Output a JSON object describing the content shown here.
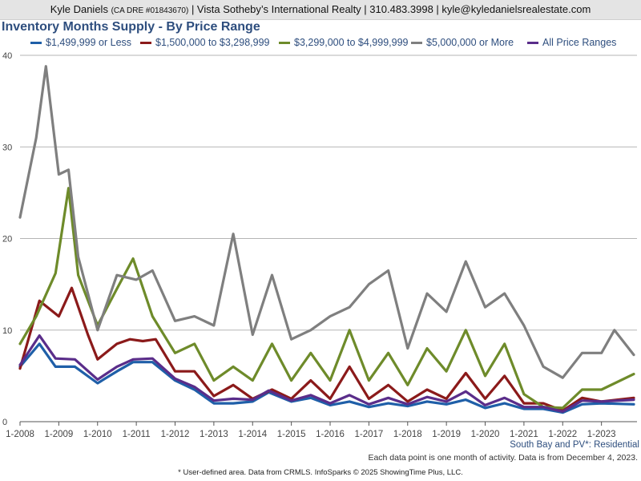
{
  "header": {
    "agent_name": "Kyle Daniels",
    "dre": "(CA DRE #01843670)",
    "rest": "| Vista Sotheby’s International Realty | 310.483.3998 | kyle@kyledanielsrealestate.com"
  },
  "title": "Inventory Months Supply - By Price Range",
  "region_label": "South Bay and PV*: Residential",
  "note_data_point": "Each data point is one month of activity. Data is from December 4, 2023.",
  "note_footer": "* User-defined area. Data from CRMLS. InfoSparks © 2025 ShowingTime Plus, LLC.",
  "chart_data": {
    "type": "line",
    "x_tick_labels": [
      "1-2008",
      "1-2009",
      "1-2010",
      "1-2011",
      "1-2012",
      "1-2013",
      "1-2014",
      "1-2015",
      "1-2016",
      "1-2017",
      "1-2018",
      "1-2019",
      "1-2020",
      "1-2021",
      "1-2022",
      "1-2023"
    ],
    "y_ticks": [
      0,
      10,
      20,
      30,
      40
    ],
    "ylim": [
      0,
      40
    ],
    "xlim": [
      "1-2008",
      "12-2023"
    ],
    "grid": "horizontal",
    "legend_position": "top",
    "series": [
      {
        "name": "$1,499,999 or Less",
        "color": "#1f5fa8",
        "points": [
          [
            "1-2008",
            6.0
          ],
          [
            "7-2008",
            8.5
          ],
          [
            "12-2008",
            6.0
          ],
          [
            "6-2009",
            6.0
          ],
          [
            "1-2010",
            4.2
          ],
          [
            "7-2010",
            5.5
          ],
          [
            "12-2010",
            6.5
          ],
          [
            "6-2011",
            6.5
          ],
          [
            "1-2012",
            4.5
          ],
          [
            "7-2012",
            3.5
          ],
          [
            "1-2013",
            2.0
          ],
          [
            "7-2013",
            2.0
          ],
          [
            "1-2014",
            2.2
          ],
          [
            "6-2014",
            3.2
          ],
          [
            "1-2015",
            2.2
          ],
          [
            "7-2015",
            2.6
          ],
          [
            "1-2016",
            1.8
          ],
          [
            "7-2016",
            2.2
          ],
          [
            "1-2017",
            1.6
          ],
          [
            "7-2017",
            2.0
          ],
          [
            "1-2018",
            1.7
          ],
          [
            "7-2018",
            2.2
          ],
          [
            "1-2019",
            1.9
          ],
          [
            "7-2019",
            2.4
          ],
          [
            "1-2020",
            1.5
          ],
          [
            "7-2020",
            2.0
          ],
          [
            "1-2021",
            1.4
          ],
          [
            "7-2021",
            1.4
          ],
          [
            "1-2022",
            1.0
          ],
          [
            "7-2022",
            1.9
          ],
          [
            "1-2023",
            2.0
          ],
          [
            "11-2023",
            1.9
          ]
        ]
      },
      {
        "name": "$1,500,000 to $3,298,999",
        "color": "#8b1a1a",
        "points": [
          [
            "1-2008",
            5.8
          ],
          [
            "7-2008",
            13.2
          ],
          [
            "1-2009",
            11.5
          ],
          [
            "5-2009",
            14.6
          ],
          [
            "10-2009",
            9.5
          ],
          [
            "1-2010",
            6.8
          ],
          [
            "7-2010",
            8.5
          ],
          [
            "11-2010",
            9.0
          ],
          [
            "3-2011",
            8.8
          ],
          [
            "7-2011",
            9.0
          ],
          [
            "1-2012",
            5.5
          ],
          [
            "7-2012",
            5.5
          ],
          [
            "1-2013",
            2.8
          ],
          [
            "7-2013",
            4.0
          ],
          [
            "1-2014",
            2.5
          ],
          [
            "7-2014",
            3.5
          ],
          [
            "1-2015",
            2.5
          ],
          [
            "7-2015",
            4.5
          ],
          [
            "1-2016",
            2.5
          ],
          [
            "7-2016",
            6.0
          ],
          [
            "1-2017",
            2.5
          ],
          [
            "7-2017",
            4.0
          ],
          [
            "1-2018",
            2.2
          ],
          [
            "7-2018",
            3.5
          ],
          [
            "1-2019",
            2.5
          ],
          [
            "7-2019",
            5.3
          ],
          [
            "1-2020",
            2.5
          ],
          [
            "7-2020",
            5.0
          ],
          [
            "1-2021",
            2.0
          ],
          [
            "7-2021",
            2.0
          ],
          [
            "1-2022",
            1.2
          ],
          [
            "7-2022",
            2.6
          ],
          [
            "1-2023",
            2.2
          ],
          [
            "11-2023",
            2.6
          ]
        ]
      },
      {
        "name": "$3,299,000 to $4,999,999",
        "color": "#6e8b2a",
        "points": [
          [
            "1-2008",
            8.5
          ],
          [
            "6-2008",
            11.5
          ],
          [
            "12-2008",
            16.2
          ],
          [
            "4-2009",
            25.5
          ],
          [
            "7-2009",
            16.0
          ],
          [
            "1-2010",
            10.5
          ],
          [
            "7-2010",
            14.5
          ],
          [
            "12-2010",
            17.8
          ],
          [
            "6-2011",
            11.5
          ],
          [
            "1-2012",
            7.5
          ],
          [
            "7-2012",
            8.5
          ],
          [
            "1-2013",
            4.5
          ],
          [
            "7-2013",
            6.0
          ],
          [
            "1-2014",
            4.5
          ],
          [
            "7-2014",
            8.5
          ],
          [
            "1-2015",
            4.5
          ],
          [
            "7-2015",
            7.5
          ],
          [
            "1-2016",
            4.5
          ],
          [
            "7-2016",
            10.0
          ],
          [
            "1-2017",
            4.5
          ],
          [
            "7-2017",
            7.5
          ],
          [
            "1-2018",
            4.0
          ],
          [
            "7-2018",
            8.0
          ],
          [
            "1-2019",
            5.5
          ],
          [
            "7-2019",
            10.0
          ],
          [
            "1-2020",
            5.0
          ],
          [
            "7-2020",
            8.5
          ],
          [
            "1-2021",
            3.0
          ],
          [
            "7-2021",
            1.6
          ],
          [
            "1-2022",
            1.5
          ],
          [
            "7-2022",
            3.5
          ],
          [
            "1-2023",
            3.5
          ],
          [
            "11-2023",
            5.2
          ]
        ]
      },
      {
        "name": "$5,000,000 or More",
        "color": "#7f7f7f",
        "points": [
          [
            "1-2008",
            22.3
          ],
          [
            "6-2008",
            31.0
          ],
          [
            "9-2008",
            38.8
          ],
          [
            "1-2009",
            27.0
          ],
          [
            "4-2009",
            27.5
          ],
          [
            "7-2009",
            18.0
          ],
          [
            "1-2010",
            10.0
          ],
          [
            "7-2010",
            16.0
          ],
          [
            "1-2011",
            15.5
          ],
          [
            "6-2011",
            16.5
          ],
          [
            "1-2012",
            11.0
          ],
          [
            "7-2012",
            11.5
          ],
          [
            "1-2013",
            10.5
          ],
          [
            "7-2013",
            20.5
          ],
          [
            "1-2014",
            9.5
          ],
          [
            "7-2014",
            16.0
          ],
          [
            "1-2015",
            9.0
          ],
          [
            "7-2015",
            10.0
          ],
          [
            "1-2016",
            11.5
          ],
          [
            "7-2016",
            12.5
          ],
          [
            "1-2017",
            15.0
          ],
          [
            "7-2017",
            16.5
          ],
          [
            "1-2018",
            8.0
          ],
          [
            "7-2018",
            14.0
          ],
          [
            "1-2019",
            12.0
          ],
          [
            "7-2019",
            17.5
          ],
          [
            "1-2020",
            12.5
          ],
          [
            "7-2020",
            14.0
          ],
          [
            "1-2021",
            10.5
          ],
          [
            "7-2021",
            6.0
          ],
          [
            "1-2022",
            4.8
          ],
          [
            "7-2022",
            7.5
          ],
          [
            "1-2023",
            7.5
          ],
          [
            "5-2023",
            10.0
          ],
          [
            "11-2023",
            7.3
          ]
        ]
      },
      {
        "name": "All Price Ranges",
        "color": "#5a2d8a",
        "points": [
          [
            "1-2008",
            6.2
          ],
          [
            "7-2008",
            9.4
          ],
          [
            "12-2008",
            6.9
          ],
          [
            "6-2009",
            6.8
          ],
          [
            "1-2010",
            4.6
          ],
          [
            "7-2010",
            6.0
          ],
          [
            "12-2010",
            6.8
          ],
          [
            "6-2011",
            6.9
          ],
          [
            "1-2012",
            4.7
          ],
          [
            "7-2012",
            3.8
          ],
          [
            "1-2013",
            2.3
          ],
          [
            "7-2013",
            2.5
          ],
          [
            "1-2014",
            2.4
          ],
          [
            "6-2014",
            3.4
          ],
          [
            "1-2015",
            2.3
          ],
          [
            "7-2015",
            2.9
          ],
          [
            "1-2016",
            2.0
          ],
          [
            "7-2016",
            2.9
          ],
          [
            "1-2017",
            1.9
          ],
          [
            "7-2017",
            2.6
          ],
          [
            "1-2018",
            1.9
          ],
          [
            "7-2018",
            2.7
          ],
          [
            "1-2019",
            2.2
          ],
          [
            "7-2019",
            3.3
          ],
          [
            "1-2020",
            1.8
          ],
          [
            "7-2020",
            2.6
          ],
          [
            "1-2021",
            1.6
          ],
          [
            "7-2021",
            1.6
          ],
          [
            "1-2022",
            1.1
          ],
          [
            "7-2022",
            2.3
          ],
          [
            "1-2023",
            2.2
          ],
          [
            "11-2023",
            2.4
          ]
        ]
      }
    ]
  }
}
